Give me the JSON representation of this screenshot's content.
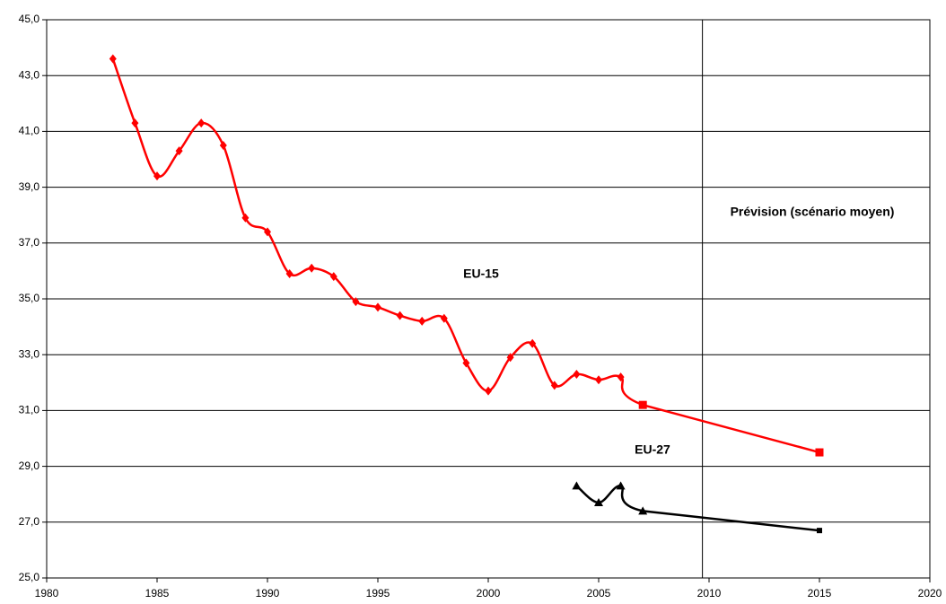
{
  "chart_data": {
    "type": "line",
    "x": [
      1983,
      1984,
      1985,
      1986,
      1987,
      1988,
      1989,
      1990,
      1991,
      1992,
      1993,
      1994,
      1995,
      1996,
      1997,
      1998,
      1999,
      2000,
      2001,
      2002,
      2003,
      2004,
      2005,
      2006,
      2007,
      2015
    ],
    "series": [
      {
        "name": "EU-15",
        "color": "#ff0000",
        "x": [
          1983,
          1984,
          1985,
          1986,
          1987,
          1988,
          1989,
          1990,
          1991,
          1992,
          1993,
          1994,
          1995,
          1996,
          1997,
          1998,
          1999,
          2000,
          2001,
          2002,
          2003,
          2004,
          2005,
          2006,
          2007,
          2015
        ],
        "values": [
          43.6,
          41.3,
          39.4,
          40.3,
          41.3,
          40.5,
          37.9,
          37.4,
          35.9,
          36.1,
          35.8,
          34.9,
          34.7,
          34.4,
          34.2,
          34.3,
          32.7,
          31.7,
          32.9,
          33.4,
          31.9,
          32.3,
          32.1,
          32.2,
          31.2,
          29.5
        ]
      },
      {
        "name": "EU-27",
        "color": "#000000",
        "x": [
          2004,
          2005,
          2006,
          2007,
          2015
        ],
        "values": [
          28.3,
          27.7,
          28.3,
          27.4,
          26.7
        ]
      }
    ],
    "annotations": [
      "Prévision (scénario moyen)"
    ],
    "forecast_line_x": 2009.7,
    "xlim": [
      1980,
      2020
    ],
    "xticks": [
      1980,
      1985,
      1990,
      1995,
      2000,
      2005,
      2010,
      2015,
      2020
    ],
    "ylim": [
      25,
      45
    ],
    "yticks": [
      {
        "value": 25,
        "label": "25,0"
      },
      {
        "value": 27,
        "label": "27,0"
      },
      {
        "value": 29,
        "label": "29,0"
      },
      {
        "value": 31,
        "label": "31,0"
      },
      {
        "value": 33,
        "label": "33,0"
      },
      {
        "value": 35,
        "label": "35,0"
      },
      {
        "value": 37,
        "label": "37,0"
      },
      {
        "value": 39,
        "label": "39,0"
      },
      {
        "value": 41,
        "label": "41,0"
      },
      {
        "value": 43,
        "label": "43,0"
      },
      {
        "value": 45,
        "label": "45,0"
      }
    ],
    "grid": true
  }
}
